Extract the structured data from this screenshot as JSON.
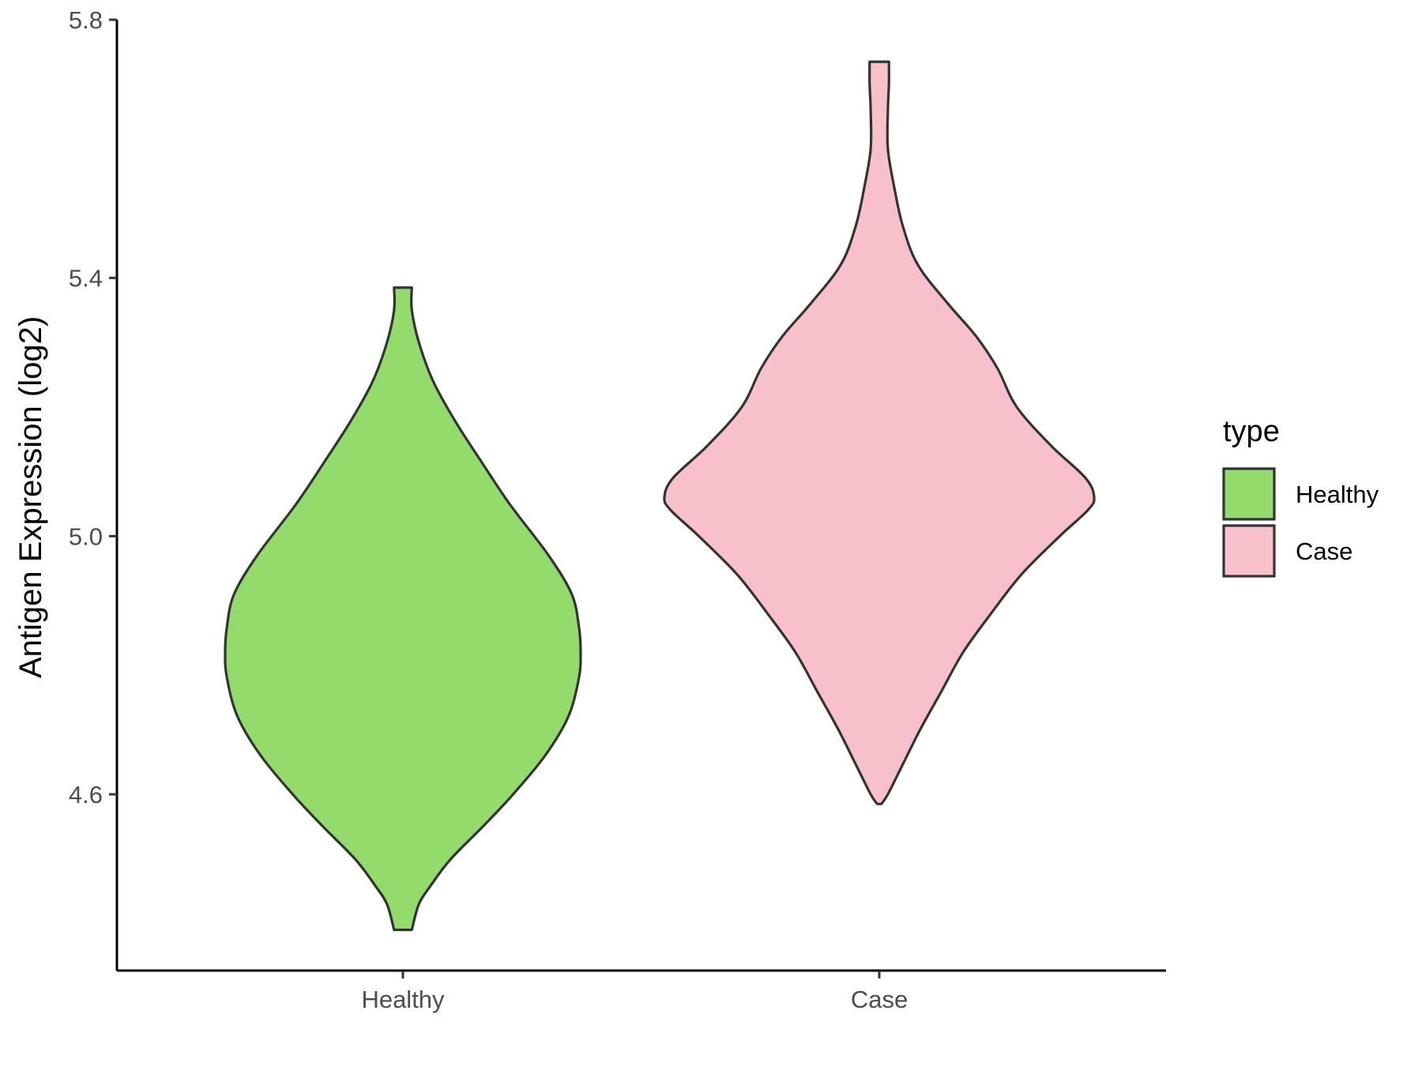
{
  "chart_data": {
    "type": "violin",
    "categories": [
      "Healthy",
      "Case"
    ],
    "ylabel": "Antigen Expression (log2)",
    "xlabel": "",
    "yticks": [
      "4.6",
      "5.0",
      "5.4",
      "5.8"
    ],
    "ylim": [
      4.33,
      5.8
    ],
    "colors": {
      "Healthy": "#93dc6b",
      "Case": "#f8c0cb",
      "outline": "#333333"
    },
    "legend": {
      "title": "type",
      "position": "right",
      "items": [
        "Healthy",
        "Case"
      ]
    },
    "series": [
      {
        "name": "Healthy",
        "ymin": 4.39,
        "ymax": 5.385,
        "density": [
          [
            4.39,
            0.05
          ],
          [
            4.43,
            0.09
          ],
          [
            4.46,
            0.16
          ],
          [
            4.5,
            0.27
          ],
          [
            4.55,
            0.45
          ],
          [
            4.6,
            0.62
          ],
          [
            4.66,
            0.8
          ],
          [
            4.72,
            0.93
          ],
          [
            4.78,
            0.99
          ],
          [
            4.82,
            1.0
          ],
          [
            4.86,
            0.99
          ],
          [
            4.91,
            0.95
          ],
          [
            4.97,
            0.82
          ],
          [
            5.05,
            0.6
          ],
          [
            5.12,
            0.43
          ],
          [
            5.18,
            0.29
          ],
          [
            5.24,
            0.17
          ],
          [
            5.3,
            0.09
          ],
          [
            5.35,
            0.05
          ],
          [
            5.385,
            0.05
          ]
        ]
      },
      {
        "name": "Case",
        "ymin": 4.585,
        "ymax": 5.735,
        "density": [
          [
            4.585,
            0.01
          ],
          [
            4.6,
            0.04
          ],
          [
            4.64,
            0.1
          ],
          [
            4.7,
            0.19
          ],
          [
            4.76,
            0.29
          ],
          [
            4.82,
            0.39
          ],
          [
            4.88,
            0.52
          ],
          [
            4.94,
            0.66
          ],
          [
            5.0,
            0.84
          ],
          [
            5.04,
            0.97
          ],
          [
            5.06,
            1.0
          ],
          [
            5.09,
            0.96
          ],
          [
            5.14,
            0.8
          ],
          [
            5.2,
            0.64
          ],
          [
            5.26,
            0.55
          ],
          [
            5.31,
            0.45
          ],
          [
            5.36,
            0.32
          ],
          [
            5.42,
            0.18
          ],
          [
            5.48,
            0.11
          ],
          [
            5.54,
            0.07
          ],
          [
            5.6,
            0.04
          ],
          [
            5.66,
            0.04
          ],
          [
            5.7,
            0.045
          ],
          [
            5.735,
            0.045
          ]
        ]
      }
    ]
  }
}
